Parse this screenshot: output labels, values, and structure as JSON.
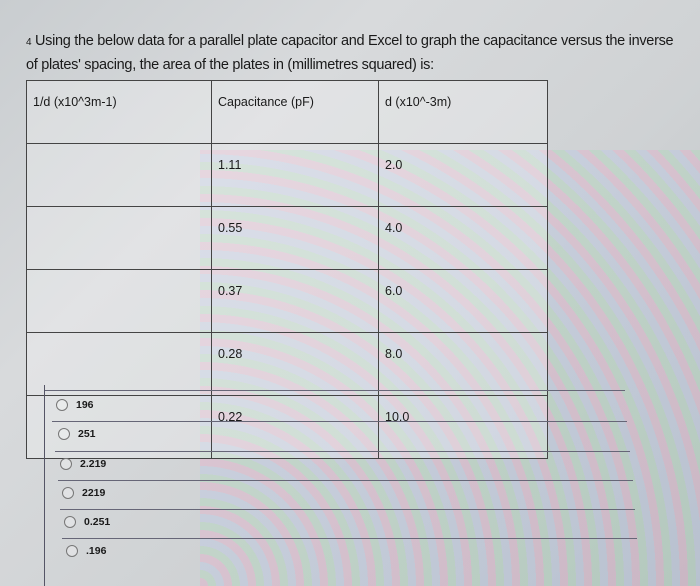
{
  "question": {
    "number": "4",
    "text": "Using the below data for a parallel plate capacitor and Excel to graph the capacitance versus the inverse of plates' spacing, the area of the plates in (millimetres squared) is:"
  },
  "table": {
    "headers": [
      "1/d (x10^3m-1)",
      "Capacitance (pF)",
      "d (x10^-3m)"
    ],
    "rows": [
      [
        "",
        "1.11",
        "2.0"
      ],
      [
        "",
        "0.55",
        "4.0"
      ],
      [
        "",
        "0.37",
        "6.0"
      ],
      [
        "",
        "0.28",
        "8.0"
      ],
      [
        "",
        "0.22",
        "10.0"
      ]
    ]
  },
  "options": [
    "196",
    "251",
    "2.219",
    "2219",
    "0.251",
    ".196"
  ]
}
